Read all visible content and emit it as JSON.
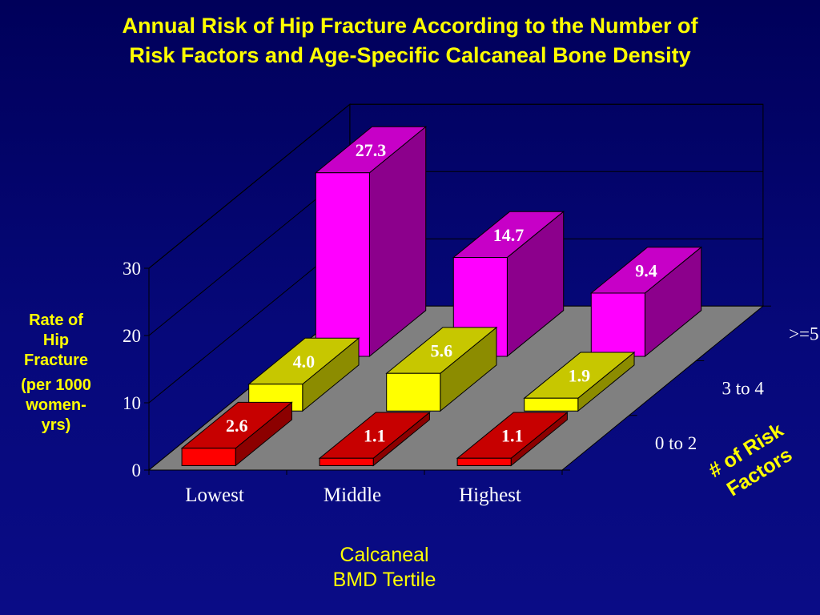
{
  "chart_data": {
    "type": "bar",
    "subtype": "3d-grouped",
    "title": "Annual Risk of Hip Fracture According to the Number of Risk Factors and Age-Specific Calcaneal Bone Density",
    "title_lines": [
      "Annual Risk of Hip Fracture According to the Number of",
      "Risk Factors and Age-Specific Calcaneal Bone Density"
    ],
    "ylabel_lines": [
      "Rate of",
      "Hip",
      "Fracture"
    ],
    "ylabel_unit_lines": [
      "(per 1000",
      "women-",
      "yrs)"
    ],
    "xlabel_lines": [
      "Calcaneal",
      "BMD Tertile"
    ],
    "zlabel_lines": [
      "# of Risk",
      "Factors"
    ],
    "categories": [
      "Lowest",
      "Middle",
      "Highest"
    ],
    "yticks": [
      "0",
      "10",
      "20",
      "30"
    ],
    "ylim": [
      0,
      30
    ],
    "series": [
      {
        "name": "0 to 2",
        "values": [
          2.6,
          1.1,
          1.1
        ],
        "labels": [
          "2.6",
          "1.1",
          "1.1"
        ],
        "color": "#ff0000"
      },
      {
        "name": "3 to 4",
        "values": [
          4.0,
          5.6,
          1.9
        ],
        "labels": [
          "4.0",
          "5.6",
          "1.9"
        ],
        "color": "#ffff00"
      },
      {
        "name": ">=5",
        "values": [
          27.3,
          14.7,
          9.4
        ],
        "labels": [
          "27.3",
          "14.7",
          "9.4"
        ],
        "color": "#ff00ff"
      }
    ],
    "colors": {
      "background": "#00005a",
      "floor": "#808080",
      "text": "#ffffff",
      "accent": "#ffff00"
    }
  }
}
